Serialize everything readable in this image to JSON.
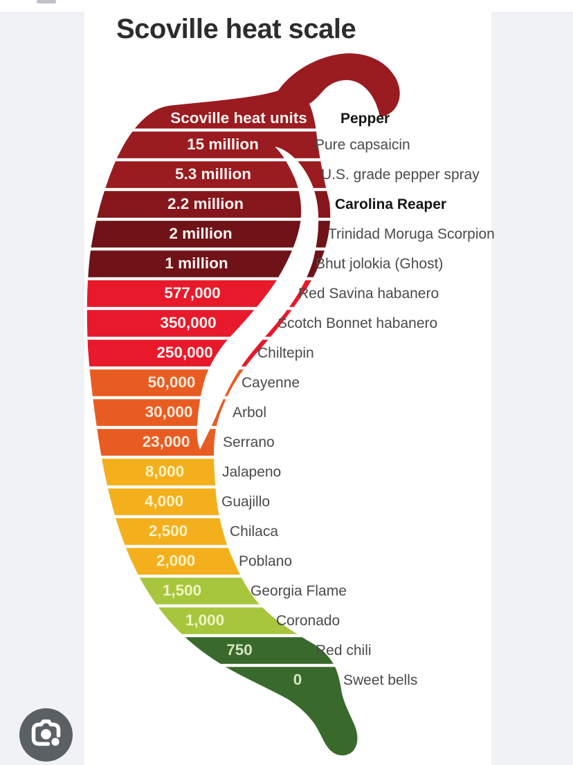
{
  "page": {
    "background_color": "#F1F2F5",
    "card_background": "#FFFFFF",
    "top_strip_color": "#FFFFFF"
  },
  "title": "Scoville heat scale",
  "title_color": "#2D2D2D",
  "chart_data": {
    "type": "bar",
    "title": "Scoville heat scale",
    "description": "Chili-pepper-shaped scale of Scoville heat units per pepper, hottest at top",
    "headers": {
      "units": "Scoville heat units",
      "pepper": "Pepper"
    },
    "rows": [
      {
        "value": "15 million",
        "value_num": 15000000,
        "pepper": "Pure capsaicin",
        "color": "darkred",
        "bold": false
      },
      {
        "value": "5.3 million",
        "value_num": 5300000,
        "pepper": "U.S. grade pepper spray",
        "color": "darkred",
        "bold": false
      },
      {
        "value": "2.2 million",
        "value_num": 2200000,
        "pepper": "Carolina Reaper",
        "color": "deepred",
        "bold": true
      },
      {
        "value": "2 million",
        "value_num": 2000000,
        "pepper": "Trinidad Moruga Scorpion",
        "color": "maroon",
        "bold": false
      },
      {
        "value": "1 million",
        "value_num": 1000000,
        "pepper": "Bhut jolokia (Ghost)",
        "color": "maroon",
        "bold": false
      },
      {
        "value": "577,000",
        "value_num": 577000,
        "pepper": "Red Savina habanero",
        "color": "red",
        "bold": false
      },
      {
        "value": "350,000",
        "value_num": 350000,
        "pepper": "Scotch Bonnet habanero",
        "color": "red",
        "bold": false
      },
      {
        "value": "250,000",
        "value_num": 250000,
        "pepper": "Chiltepin",
        "color": "red",
        "bold": false
      },
      {
        "value": "50,000",
        "value_num": 50000,
        "pepper": "Cayenne",
        "color": "orange",
        "bold": false
      },
      {
        "value": "30,000",
        "value_num": 30000,
        "pepper": "Arbol",
        "color": "orange",
        "bold": false
      },
      {
        "value": "23,000",
        "value_num": 23000,
        "pepper": "Serrano",
        "color": "orange",
        "bold": false
      },
      {
        "value": "8,000",
        "value_num": 8000,
        "pepper": "Jalapeno",
        "color": "amber",
        "bold": false
      },
      {
        "value": "4,000",
        "value_num": 4000,
        "pepper": "Guajillo",
        "color": "amber",
        "bold": false
      },
      {
        "value": "2,500",
        "value_num": 2500,
        "pepper": "Chilaca",
        "color": "amber",
        "bold": false
      },
      {
        "value": "2,000",
        "value_num": 2000,
        "pepper": "Poblano",
        "color": "amber",
        "bold": false
      },
      {
        "value": "1,500",
        "value_num": 1500,
        "pepper": "Georgia Flame",
        "color": "lightgreen",
        "bold": false
      },
      {
        "value": "1,000",
        "value_num": 1000,
        "pepper": "Coronado",
        "color": "lightgreen",
        "bold": false
      },
      {
        "value": "750",
        "value_num": 750,
        "pepper": "Red chili",
        "color": "darkgreen",
        "bold": false
      },
      {
        "value": "0",
        "value_num": 0,
        "pepper": "Sweet bells",
        "color": "darkgreen",
        "bold": false
      }
    ],
    "palette": {
      "darkred": "#9A1B20",
      "deepred": "#85161B",
      "maroon": "#6F1318",
      "red": "#E8192B",
      "orange": "#E85C22",
      "amber": "#F3B01C",
      "lightgreen": "#A8C63D",
      "darkgreen": "#3A692C"
    },
    "value_colors": {
      "darkred": "#FFF4F0",
      "deepred": "#FFF4F0",
      "maroon": "#FFF4F0",
      "red": "#FFF6F2",
      "orange": "#FCEBDC",
      "amber": "#FCF2C6",
      "lightgreen": "#EFF4C4",
      "darkgreen": "#D5E6C3"
    },
    "label_color": "#4A4A4A",
    "label_bold_color": "#151515",
    "separator_color": "#FFFFFF",
    "highlight_color": "#FFFFFF",
    "legend_position": "none",
    "grid": false
  },
  "lens_button": {
    "icon": "camera-lens-icon",
    "background": "#5B6065",
    "glyph_color": "#FFFFFF"
  }
}
